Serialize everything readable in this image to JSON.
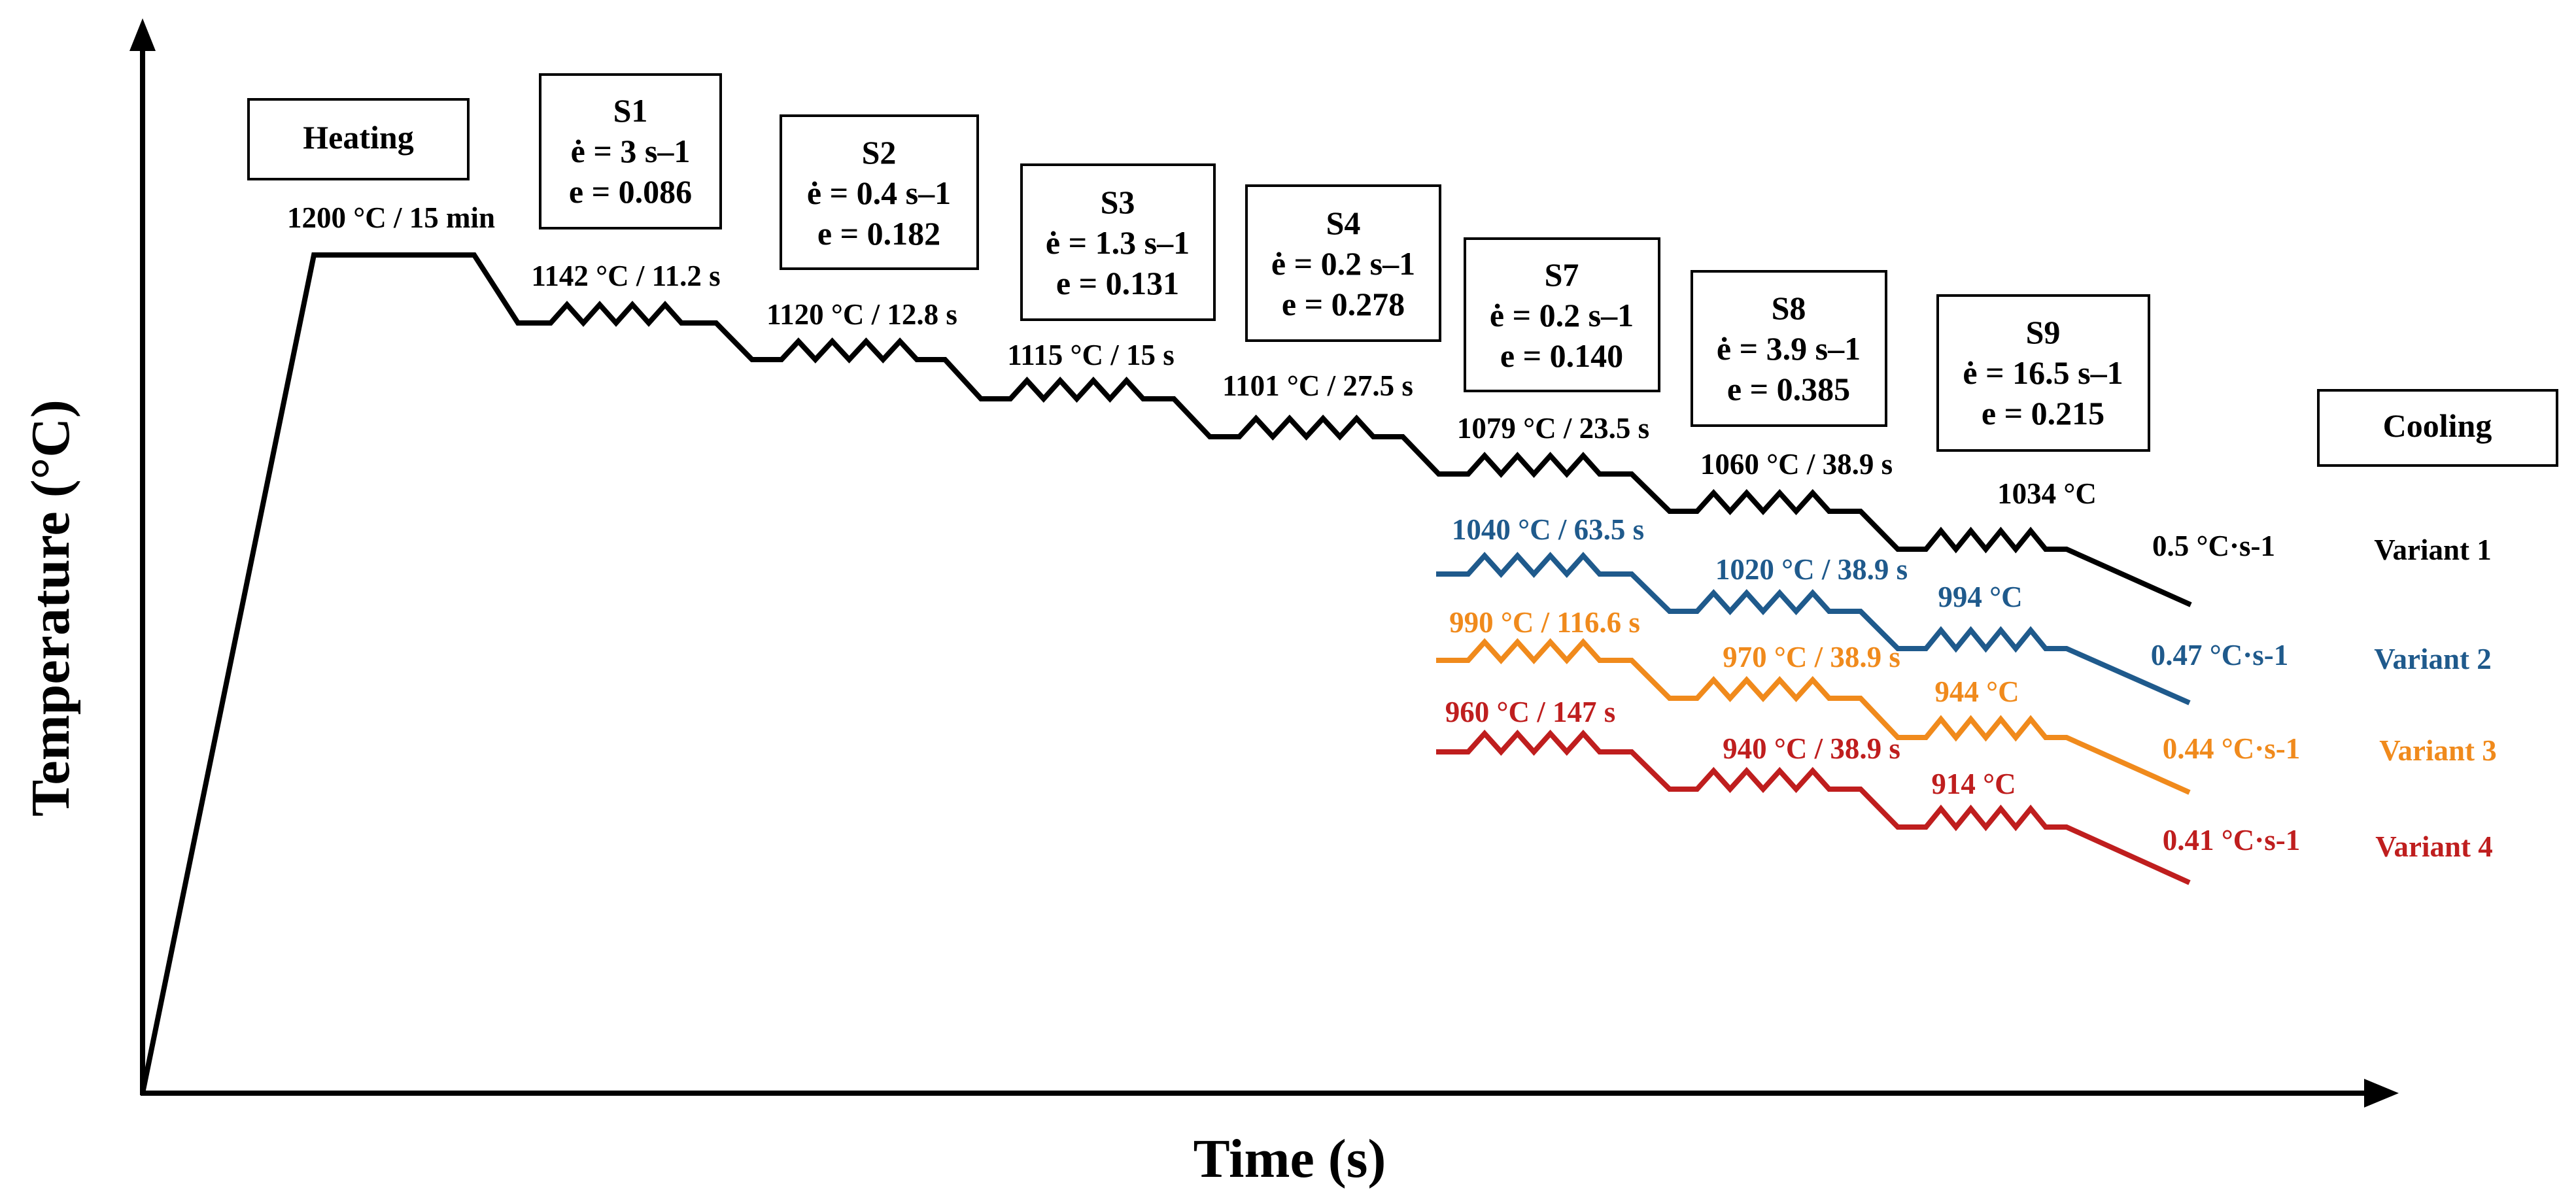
{
  "axes": {
    "x_label": "Time (s)",
    "y_label": "Temperature (°C)"
  },
  "colors": {
    "variant1": "#000000",
    "variant2": "#1f5a8c",
    "variant3": "#f08a1c",
    "variant4": "#bf1e1e"
  },
  "heating": {
    "label": "Heating",
    "hold": "1200 °C / 15 min"
  },
  "cooling": {
    "label": "Cooling"
  },
  "stages": [
    {
      "name": "S1",
      "rate": "ė = 3 s–1",
      "strain": "e = 0.086"
    },
    {
      "name": "S2",
      "rate": "ė = 0.4 s–1",
      "strain": "e = 0.182"
    },
    {
      "name": "S3",
      "rate": "ė = 1.3 s–1",
      "strain": "e = 0.131"
    },
    {
      "name": "S4",
      "rate": "ė = 0.2 s–1",
      "strain": "e = 0.278"
    },
    {
      "name": "S7",
      "rate": "ė = 0.2 s–1",
      "strain": "e = 0.140"
    },
    {
      "name": "S8",
      "rate": "ė = 3.9 s–1",
      "strain": "e = 0.385"
    },
    {
      "name": "S9",
      "rate": "ė = 16.5 s–1",
      "strain": "e = 0.215"
    }
  ],
  "common_steps": [
    {
      "label": "1142 °C / 11.2 s"
    },
    {
      "label": "1120 °C / 12.8 s"
    },
    {
      "label": "1115 °C / 15 s"
    },
    {
      "label": "1101 °C / 27.5 s"
    }
  ],
  "variants": [
    {
      "name": "Variant 1",
      "cooling_rate": "0.5 °C·s-1",
      "steps": [
        "1079 °C / 23.5 s",
        "1060 °C / 38.9 s",
        "1034 °C"
      ]
    },
    {
      "name": "Variant 2",
      "cooling_rate": "0.47 °C·s-1",
      "steps": [
        "1040 °C / 63.5 s",
        "1020 °C / 38.9 s",
        "994 °C"
      ]
    },
    {
      "name": "Variant 3",
      "cooling_rate": "0.44 °C·s-1",
      "steps": [
        "990 °C / 116.6 s",
        "970 °C / 38.9 s",
        "944 °C"
      ]
    },
    {
      "name": "Variant 4",
      "cooling_rate": "0.41 °C·s-1",
      "steps": [
        "960 °C / 147 s",
        "940 °C / 38.9 s",
        "914 °C"
      ]
    }
  ]
}
